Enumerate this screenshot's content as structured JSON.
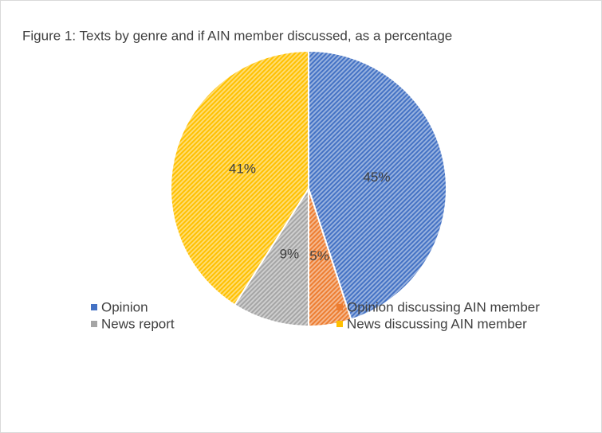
{
  "chart_data": {
    "type": "pie",
    "title": "Figure 1: Texts by genre and if AIN member discussed, as a percentage",
    "categories": [
      "Opinion",
      "Opinion discussing AIN member",
      "News report",
      "News discussing AIN member"
    ],
    "values": [
      45,
      5,
      9,
      41
    ],
    "value_labels": [
      "45%",
      "5%",
      "9%",
      "41%"
    ],
    "colors": [
      "#4472c4",
      "#ed7d31",
      "#a5a5a5",
      "#ffc000"
    ],
    "legend": "bottom"
  }
}
